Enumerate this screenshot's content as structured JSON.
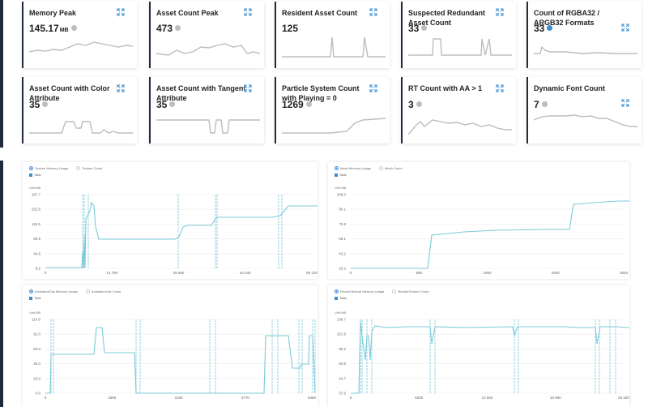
{
  "cards": [
    {
      "title": "Memory Peak",
      "value": "145.17",
      "unit": "MB",
      "info": "grey"
    },
    {
      "title": "Asset Count Peak",
      "value": "473",
      "unit": "",
      "info": "grey"
    },
    {
      "title": "Resident Asset Count",
      "value": "125",
      "unit": "",
      "info": ""
    },
    {
      "title": "Suspected Redundant Asset Count",
      "value": "33",
      "unit": "",
      "info": "grey"
    },
    {
      "title": "Count of RGBA32 / ARGB32 Formats",
      "value": "33",
      "unit": "",
      "info": "blue"
    },
    {
      "title": "Asset Count with Color Attribute",
      "value": "35",
      "unit": "",
      "info": "grey"
    },
    {
      "title": "Asset Count with Tangent Attribute",
      "value": "35",
      "unit": "",
      "info": "grey"
    },
    {
      "title": "Particle System Count with Playing = 0",
      "value": "1269",
      "unit": "",
      "info": "grey"
    },
    {
      "title": "RT Count with AA > 1",
      "value": "3",
      "unit": "",
      "info": "grey"
    },
    {
      "title": "Dynamic Font Count",
      "value": "7",
      "unit": "",
      "info": "grey"
    }
  ],
  "panels": [
    {
      "legend_on": "Texture Memory Usage",
      "legend_off": "Texture Count",
      "total": "Total",
      "unit": "Unit:MB",
      "yticks": [
        "187.7",
        "152.6",
        "116.5",
        "80.6",
        "44.6",
        "8.2"
      ],
      "xticks": [
        "0",
        "14 780",
        "29 560",
        "44 340",
        "59 120"
      ]
    },
    {
      "legend_on": "Mesh Memory Usage",
      "legend_off": "Mesh Count",
      "total": "Total",
      "unit": "Unit:MB",
      "yticks": [
        "108.3",
        "90.1",
        "75.8",
        "59.1",
        "43.2",
        "26.2"
      ],
      "xticks": [
        "0",
        "980",
        "1960",
        "2940",
        "3920"
      ]
    },
    {
      "legend_on": "AnimationClip Memory Usage",
      "legend_off": "AnimationClip Count",
      "total": "Total",
      "unit": "Unit:MB",
      "yticks": [
        "114.9",
        "92.0",
        "69.0",
        "46.0",
        "23.0",
        "0.0"
      ],
      "xticks": [
        "0",
        "1590",
        "3180",
        "4770",
        "6360"
      ]
    },
    {
      "legend_on": "RenderTexture Memory Usage",
      "legend_off": "RenderTexture Count",
      "total": "Total",
      "unit": "Unit:MB",
      "yticks": [
        "130.7",
        "101.9",
        "86.2",
        "60.5",
        "44.7",
        "37.6"
      ],
      "xticks": [
        "0",
        "6330",
        "12 660",
        "18 990",
        "25 320"
      ]
    }
  ],
  "colors": {
    "line": "#7ccad9",
    "spark": "#bdbdbd",
    "accent": "#3b8ed0",
    "sidebar": "#1f2a3c"
  }
}
